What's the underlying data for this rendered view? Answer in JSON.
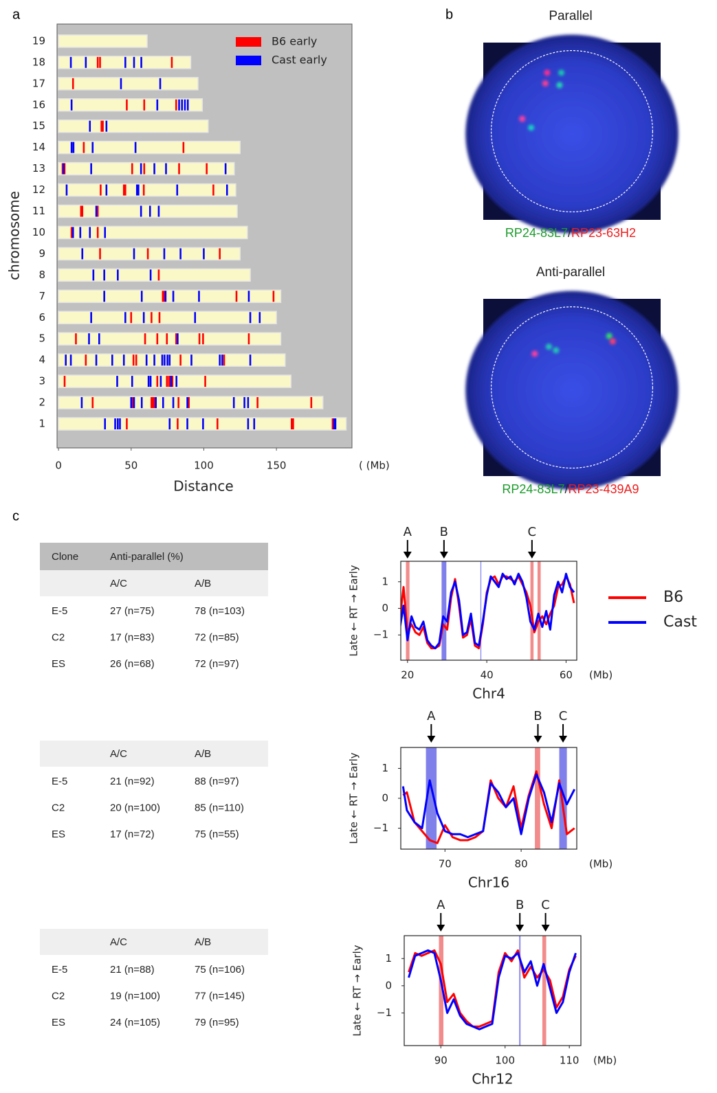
{
  "panels": [
    "a",
    "b",
    "c"
  ],
  "chart_data": [
    {
      "type": "ideogram",
      "xlabel": "Distance",
      "xunit": "(  (Mb)",
      "ylabel": "chromosome",
      "categories": [
        "1",
        "2",
        "3",
        "4",
        "5",
        "6",
        "7",
        "8",
        "9",
        "10",
        "11",
        "12",
        "13",
        "14",
        "15",
        "16",
        "17",
        "18",
        "19"
      ],
      "lengths": [
        198,
        182,
        160,
        156,
        153,
        150,
        153,
        132,
        125,
        130,
        123,
        122,
        121,
        125,
        103,
        99,
        96,
        91,
        61
      ],
      "xlim": [
        -1,
        202
      ],
      "xticks": [
        0,
        50,
        100,
        150
      ],
      "bar_color": "#fbf8c8",
      "background": "#c0c0c0",
      "legend": "upper right",
      "series": [
        {
          "name": "B6 early",
          "color": "#ff0000",
          "positions": [
            [
              47,
              82,
              109.4,
              160.5,
              161.5,
              188.7
            ],
            [
              23.5,
              51,
              64,
              65,
              66,
              82.6,
              89.7,
              137,
              174
            ],
            [
              4.2,
              68,
              74.6,
              76,
              77,
              78.4,
              101
            ],
            [
              18.8,
              51.6,
              53.5,
              84,
              114
            ],
            [
              12,
              59.6,
              68,
              74.6,
              81,
              97,
              99.5,
              131
            ],
            [
              50,
              64,
              69.5
            ],
            [
              71.8,
              72.8,
              122.5,
              148
            ],
            [
              69
            ],
            [
              28.6,
              61.5,
              111
            ],
            [
              9,
              27
            ],
            [
              15.5,
              16.4,
              27
            ],
            [
              29,
              45,
              46,
              58.7,
              106.6
            ],
            [
              2.8,
              4.2,
              50.7,
              59,
              83,
              102
            ],
            [
              17.4,
              86
            ],
            [
              29.6,
              30.5
            ],
            [
              47,
              59,
              81
            ],
            [
              10
            ],
            [
              27,
              28.6,
              78
            ],
            []
          ]
        },
        {
          "name": "Cast early",
          "color": "#0000ff",
          "positions": [
            [
              32,
              39,
              40.8,
              42.3,
              76.5,
              88.7,
              99.5,
              130.5,
              134.7,
              189.7,
              190.6
            ],
            [
              16,
              50,
              52,
              57.3,
              67,
              72,
              79,
              88.7,
              120.7,
              128,
              130.5
            ],
            [
              40.4,
              50.7,
              62,
              63.4,
              70.4,
              77.5,
              81.2
            ],
            [
              5,
              8.5,
              26,
              37,
              45,
              60.6,
              66,
              71.4,
              73,
              75,
              76.5,
              91.5,
              111,
              112.7,
              132
            ],
            [
              21,
              28,
              82
            ],
            [
              22.5,
              46,
              58.7,
              94,
              132,
              138.5
            ],
            [
              31.5,
              57.3,
              73.7,
              79,
              96.7,
              131
            ],
            [
              24,
              31.5,
              40.8,
              63.4
            ],
            [
              16.4,
              52,
              72.8,
              84,
              100
            ],
            [
              10,
              15,
              21.6,
              32
            ],
            [
              26,
              56.8,
              63,
              69
            ],
            [
              5.6,
              33,
              54,
              55,
              81.7,
              116
            ],
            [
              3.5,
              22.5,
              56.8,
              66,
              74,
              115
            ],
            [
              9,
              10.3,
              23.5,
              53
            ],
            [
              21.6,
              33
            ],
            [
              9,
              68,
              83,
              85,
              87,
              89
            ],
            [
              43,
              70
            ],
            [
              8.5,
              18.8,
              46,
              52,
              57
            ],
            []
          ]
        }
      ]
    },
    {
      "type": "line",
      "xlabel": "Chr4",
      "xunit": "(Mb)",
      "ylabel": "Late ← RT → Early",
      "legend": "outside right",
      "x": [
        18,
        19,
        20,
        21,
        22,
        23,
        24,
        25,
        26,
        27,
        28,
        29,
        30,
        31,
        32,
        33,
        34,
        35,
        36,
        37,
        38,
        39,
        40,
        41,
        42,
        43,
        44,
        45,
        46,
        47,
        48,
        49,
        50,
        51,
        52,
        53,
        54,
        55,
        56,
        57,
        58,
        59,
        60,
        61,
        62
      ],
      "xlim": [
        18.3,
        62.7
      ],
      "xticks": [
        20,
        40,
        60
      ],
      "ylim": [
        -1.95,
        1.77
      ],
      "yticks": [
        {
          "value": -1,
          "label": "−1"
        },
        0,
        1
      ],
      "bands": [
        {
          "from": 19.6,
          "to": 20.5,
          "color": "#f07878"
        },
        {
          "from": 28.6,
          "to": 29.8,
          "color": "#6a6ae8"
        },
        {
          "from": 38.4,
          "to": 38.6,
          "color": "#6a6ae8"
        },
        {
          "from": 51.0,
          "to": 51.8,
          "color": "#f07878"
        },
        {
          "from": 52.8,
          "to": 53.6,
          "color": "#f07878"
        }
      ],
      "arrows": [
        {
          "label": "A",
          "x": 20
        },
        {
          "label": "B",
          "x": 29.2
        },
        {
          "label": "C",
          "x": 51.4
        }
      ],
      "series": [
        {
          "name": "B6",
          "color": "#ff0000",
          "values": [
            -0.5,
            0.8,
            -0.9,
            -0.6,
            -0.9,
            -1.0,
            -0.7,
            -1.3,
            -1.5,
            -1.5,
            -1.4,
            -0.6,
            -0.8,
            0.4,
            1.1,
            0.1,
            -1.1,
            -1.0,
            -0.4,
            -1.4,
            -1.5,
            -0.6,
            0.6,
            1.1,
            1.2,
            0.9,
            1.2,
            1.2,
            1.1,
            1.0,
            1.2,
            0.9,
            0.6,
            0.1,
            -0.9,
            -0.5,
            -0.3,
            -0.6,
            -0.2,
            0.1,
            0.8,
            0.9,
            1.2,
            0.9,
            0.2
          ]
        },
        {
          "name": "Cast",
          "color": "#0000ff",
          "values": [
            -0.8,
            0.1,
            -1.2,
            -0.3,
            -0.7,
            -0.8,
            -0.5,
            -1.2,
            -1.4,
            -1.5,
            -1.3,
            -0.3,
            -0.5,
            0.6,
            1.0,
            0.3,
            -1.0,
            -0.9,
            -0.2,
            -1.3,
            -1.4,
            -0.5,
            0.5,
            1.2,
            1.0,
            0.8,
            1.3,
            1.1,
            1.2,
            0.9,
            1.3,
            1.0,
            0.4,
            -0.5,
            -0.8,
            -0.2,
            -0.7,
            -0.1,
            -0.8,
            0.5,
            1.0,
            0.6,
            1.3,
            0.8,
            0.6
          ]
        }
      ]
    },
    {
      "type": "line",
      "xlabel": "Chr16",
      "xunit": "(Mb)",
      "ylabel": "Late ← RT → Early",
      "x": [
        64.5,
        65,
        66,
        67,
        68,
        69,
        70,
        71,
        72,
        73,
        74,
        75,
        76,
        77,
        78,
        79,
        80,
        81,
        82,
        83,
        84,
        85,
        86,
        87
      ],
      "xlim": [
        64.2,
        87.3
      ],
      "xticks": [
        70,
        80
      ],
      "ylim": [
        -1.7,
        1.7
      ],
      "yticks": [
        {
          "value": -1,
          "label": "−1"
        },
        0,
        1
      ],
      "bands": [
        {
          "from": 67.5,
          "to": 68.9,
          "color": "#6a6ae8"
        },
        {
          "from": 81.8,
          "to": 82.5,
          "color": "#f07878"
        },
        {
          "from": 85.0,
          "to": 86.0,
          "color": "#6a6ae8"
        }
      ],
      "arrows": [
        {
          "label": "A",
          "x": 68.2
        },
        {
          "label": "B",
          "x": 82.2
        },
        {
          "label": "C",
          "x": 85.5
        }
      ],
      "series": [
        {
          "color": "#ff0000",
          "values": [
            0.1,
            0.2,
            -0.8,
            -1.1,
            -1.4,
            -1.5,
            -0.9,
            -1.3,
            -1.4,
            -1.4,
            -1.3,
            -1.1,
            0.6,
            0.0,
            -0.3,
            0.4,
            -1.0,
            0.1,
            0.9,
            -0.2,
            -1.0,
            0.6,
            -1.2,
            -1.0
          ]
        },
        {
          "color": "#0000ff",
          "values": [
            0.4,
            -0.4,
            -0.8,
            -1.0,
            0.6,
            -0.5,
            -1.1,
            -1.2,
            -1.2,
            -1.3,
            -1.2,
            -1.1,
            0.5,
            0.2,
            -0.3,
            0.0,
            -1.2,
            0.0,
            0.8,
            0.2,
            -0.8,
            0.5,
            -0.2,
            0.3
          ]
        }
      ]
    },
    {
      "type": "line",
      "xlabel": "Chr12",
      "xunit": "(Mb)",
      "ylabel": "Late ← RT → Early",
      "x": [
        85,
        86,
        87,
        88,
        89,
        90,
        91,
        92,
        93,
        94,
        95,
        96,
        97,
        98,
        99,
        100,
        101,
        102,
        103,
        104,
        105,
        106,
        107,
        108,
        109,
        110,
        111
      ],
      "xlim": [
        84.3,
        111.8
      ],
      "xticks": [
        90,
        100,
        110
      ],
      "ylim": [
        -2.2,
        1.84
      ],
      "yticks": [
        {
          "value": -1,
          "label": "−1"
        },
        0,
        1
      ],
      "bands": [
        {
          "from": 89.7,
          "to": 90.4,
          "color": "#f07878"
        },
        {
          "from": 102.2,
          "to": 102.4,
          "color": "#6a6ae8"
        },
        {
          "from": 105.8,
          "to": 106.4,
          "color": "#f07878"
        }
      ],
      "arrows": [
        {
          "label": "A",
          "x": 90
        },
        {
          "label": "B",
          "x": 102.3
        },
        {
          "label": "C",
          "x": 106.3
        }
      ],
      "series": [
        {
          "color": "#ff0000",
          "values": [
            0.5,
            1.2,
            1.1,
            1.2,
            1.3,
            0.8,
            -0.6,
            -0.3,
            -1.0,
            -1.3,
            -1.5,
            -1.5,
            -1.4,
            -1.3,
            0.5,
            1.2,
            0.9,
            1.3,
            0.3,
            0.7,
            0.3,
            0.6,
            0.2,
            -0.8,
            -0.4,
            0.6,
            1.1
          ]
        },
        {
          "color": "#0000ff",
          "values": [
            0.3,
            1.1,
            1.2,
            1.3,
            1.2,
            0.2,
            -1.0,
            -0.5,
            -1.1,
            -1.4,
            -1.5,
            -1.6,
            -1.5,
            -1.4,
            0.3,
            1.1,
            1.0,
            1.2,
            0.5,
            0.9,
            0.0,
            0.8,
            -0.1,
            -1.0,
            -0.6,
            0.5,
            1.2
          ]
        }
      ]
    }
  ],
  "images": [
    {
      "title": "Parallel",
      "probes": [
        "RP24-83L7",
        "/",
        "RP23-63H2"
      ]
    },
    {
      "title": "Anti-parallel",
      "probes": [
        "RP24-83L7",
        "/",
        "RP23-439A9"
      ]
    }
  ],
  "tables": [
    {
      "header": [
        "Clone",
        "Anti-parallel (%)"
      ],
      "subheader": [
        "A/C",
        "A/B"
      ],
      "rows": [
        [
          "E-5",
          "27 (n=75)",
          "78 (n=103)"
        ],
        [
          "C2",
          "17 (n=83)",
          "72 (n=85)"
        ],
        [
          "ES",
          "26 (n=68)",
          "72 (n=97)"
        ]
      ]
    },
    {
      "subheader": [
        "A/C",
        "A/B"
      ],
      "rows": [
        [
          "E-5",
          "21 (n=92)",
          "88 (n=97)"
        ],
        [
          "C2",
          "20 (n=100)",
          "85 (n=110)"
        ],
        [
          "ES",
          "17 (n=72)",
          "75 (n=55)"
        ]
      ]
    },
    {
      "subheader": [
        "A/C",
        "A/B"
      ],
      "rows": [
        [
          "E-5",
          "21 (n=88)",
          "75 (n=106)"
        ],
        [
          "C2",
          "19 (n=100)",
          "77 (n=145)"
        ],
        [
          "ES",
          "24 (n=105)",
          "79 (n=95)"
        ]
      ]
    }
  ]
}
